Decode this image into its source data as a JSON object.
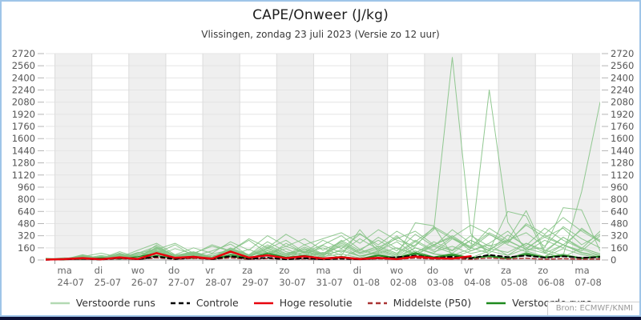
{
  "page": {
    "border_color": "#9fc5e8",
    "bottom_bar_color": "#0c1036",
    "background": "#ffffff"
  },
  "header": {
    "title": "CAPE/Onweer (J/kg)",
    "subtitle": "Vlissingen, zondag 23 juli 2023 (Versie zo 12 uur)"
  },
  "footer": {
    "source": "Bron: ECMWF/KNMI"
  },
  "chart_data": {
    "type": "line",
    "title": "CAPE/Onweer (J/kg)",
    "subtitle": "Vlissingen, zondag 23 juli 2023 (Versie zo 12 uur)",
    "ylim": [
      0,
      2720
    ],
    "yticks": [
      0,
      160,
      320,
      480,
      640,
      800,
      960,
      1120,
      1280,
      1440,
      1600,
      1760,
      1920,
      2080,
      2240,
      2400,
      2560,
      2720
    ],
    "grid": "horizontal",
    "x_hours": [
      0,
      12,
      24,
      36,
      48,
      60,
      72,
      84,
      96,
      108,
      120,
      132,
      144,
      156,
      168,
      180,
      192,
      204,
      216,
      228,
      240,
      252,
      264,
      276,
      288,
      300,
      312,
      324,
      336,
      348,
      360
    ],
    "x_axis_days": [
      {
        "dow": "ma",
        "date": "24-07"
      },
      {
        "dow": "di",
        "date": "25-07"
      },
      {
        "dow": "wo",
        "date": "26-07"
      },
      {
        "dow": "do",
        "date": "27-07"
      },
      {
        "dow": "vr",
        "date": "28-07"
      },
      {
        "dow": "za",
        "date": "29-07"
      },
      {
        "dow": "zo",
        "date": "30-07"
      },
      {
        "dow": "ma",
        "date": "31-07"
      },
      {
        "dow": "di",
        "date": "01-08"
      },
      {
        "dow": "wo",
        "date": "02-08"
      },
      {
        "dow": "do",
        "date": "03-08"
      },
      {
        "dow": "vr",
        "date": "04-08"
      },
      {
        "dow": "za",
        "date": "05-08"
      },
      {
        "dow": "zo",
        "date": "06-08"
      },
      {
        "dow": "ma",
        "date": "07-08"
      }
    ],
    "band_fill": "#efefef",
    "legend": [
      {
        "label": "Verstoorde runs",
        "color": "#b3d9b3",
        "dash": false
      },
      {
        "label": "Controle",
        "color": "#000000",
        "dash": true
      },
      {
        "label": "Hoge resolutie",
        "color": "#e8000d",
        "dash": false
      },
      {
        "label": "Middelste (P50)",
        "color": "#aa3333",
        "dash": true
      },
      {
        "label": "Verstoorde runs",
        "color": "#1e8a1e",
        "dash": false
      }
    ],
    "series": [
      {
        "name": "ensemble-01",
        "color": "#86c386",
        "width": 1,
        "dash": null,
        "opacity": 0.9,
        "values": [
          10,
          2,
          30,
          5,
          45,
          10,
          80,
          15,
          40,
          8,
          60,
          12,
          90,
          20,
          70,
          15,
          50,
          10,
          80,
          25,
          120,
          40,
          90,
          30,
          60,
          20,
          100,
          35,
          80,
          25,
          60
        ]
      },
      {
        "name": "ensemble-02",
        "color": "#86c386",
        "width": 1,
        "dash": null,
        "opacity": 0.9,
        "values": [
          5,
          15,
          20,
          40,
          10,
          60,
          150,
          30,
          20,
          60,
          90,
          15,
          120,
          40,
          60,
          100,
          30,
          140,
          60,
          20,
          160,
          80,
          30,
          120,
          200,
          60,
          150,
          90,
          40,
          160,
          80
        ]
      },
      {
        "name": "ensemble-03",
        "color": "#86c386",
        "width": 1,
        "dash": null,
        "opacity": 0.9,
        "values": [
          20,
          5,
          60,
          15,
          90,
          25,
          200,
          40,
          15,
          80,
          130,
          30,
          80,
          150,
          40,
          90,
          180,
          50,
          120,
          240,
          70,
          180,
          90,
          260,
          120,
          60,
          220,
          100,
          300,
          140,
          60
        ]
      },
      {
        "name": "ensemble-04",
        "color": "#86c386",
        "width": 1,
        "dash": null,
        "opacity": 0.9,
        "values": [
          2,
          25,
          8,
          50,
          20,
          70,
          120,
          25,
          60,
          10,
          100,
          40,
          150,
          60,
          200,
          80,
          260,
          120,
          300,
          150,
          90,
          240,
          130,
          320,
          180,
          260,
          140,
          330,
          200,
          120,
          320
        ]
      },
      {
        "name": "ensemble-05",
        "color": "#86c386",
        "width": 1,
        "dash": null,
        "opacity": 0.9,
        "values": [
          15,
          8,
          40,
          12,
          70,
          20,
          160,
          50,
          90,
          30,
          60,
          140,
          40,
          220,
          90,
          160,
          60,
          400,
          110,
          300,
          160,
          90,
          280,
          150,
          340,
          200,
          110,
          260,
          160,
          420,
          240
        ]
      },
      {
        "name": "ensemble-06",
        "color": "#86c386",
        "width": 1,
        "dash": null,
        "opacity": 0.9,
        "values": [
          8,
          20,
          50,
          10,
          30,
          90,
          180,
          60,
          110,
          40,
          160,
          70,
          240,
          110,
          60,
          190,
          100,
          280,
          140,
          320,
          100,
          200,
          300,
          120,
          220,
          380,
          160,
          300,
          420,
          200,
          340
        ]
      },
      {
        "name": "ensemble-07",
        "color": "#86c386",
        "width": 1,
        "dash": null,
        "opacity": 0.9,
        "values": [
          25,
          10,
          70,
          20,
          110,
          35,
          90,
          200,
          50,
          120,
          210,
          60,
          150,
          260,
          100,
          200,
          320,
          140,
          260,
          120,
          340,
          180,
          400,
          220,
          120,
          330,
          190,
          420,
          260,
          150,
          380
        ]
      },
      {
        "name": "ensemble-08",
        "color": "#86c386",
        "width": 1,
        "dash": null,
        "opacity": 0.9,
        "values": [
          12,
          30,
          18,
          60,
          25,
          100,
          60,
          150,
          80,
          200,
          120,
          260,
          90,
          180,
          280,
          130,
          240,
          350,
          170,
          280,
          380,
          200,
          320,
          160,
          420,
          260,
          360,
          180,
          440,
          280,
          160
        ]
      },
      {
        "name": "ensemble-09",
        "color": "#86c386",
        "width": 1,
        "dash": null,
        "opacity": 0.9,
        "values": [
          6,
          18,
          45,
          90,
          35,
          130,
          220,
          70,
          160,
          90,
          240,
          130,
          320,
          180,
          100,
          260,
          150,
          340,
          200,
          380,
          240,
          420,
          280,
          180,
          360,
          240,
          460,
          300,
          200,
          400,
          260
        ]
      },
      {
        "name": "ensemble-10",
        "color": "#86c386",
        "width": 1,
        "dash": null,
        "opacity": 0.9,
        "values": [
          18,
          6,
          55,
          25,
          85,
          40,
          140,
          220,
          90,
          180,
          120,
          280,
          160,
          340,
          200,
          280,
          360,
          220,
          400,
          260,
          180,
          440,
          300,
          460,
          340,
          220,
          480,
          340,
          560,
          380,
          240
        ]
      },
      {
        "name": "ensemble-11-spike-0308",
        "color": "#86c386",
        "width": 1,
        "dash": null,
        "opacity": 0.9,
        "values": [
          5,
          10,
          30,
          8,
          50,
          15,
          120,
          30,
          60,
          20,
          90,
          35,
          70,
          25,
          110,
          45,
          80,
          30,
          120,
          60,
          200,
          400,
          2670,
          350,
          60,
          25,
          90,
          40,
          150,
          70,
          30
        ]
      },
      {
        "name": "ensemble-12-spike-0408",
        "color": "#86c386",
        "width": 1,
        "dash": null,
        "opacity": 0.9,
        "values": [
          8,
          3,
          25,
          10,
          60,
          20,
          90,
          40,
          70,
          25,
          120,
          50,
          160,
          60,
          90,
          35,
          140,
          55,
          100,
          45,
          160,
          80,
          60,
          150,
          2240,
          500,
          120,
          45,
          200,
          90,
          40
        ]
      },
      {
        "name": "ensemble-13-rise-end",
        "color": "#86c386",
        "width": 1,
        "dash": null,
        "opacity": 0.9,
        "values": [
          3,
          12,
          40,
          15,
          70,
          25,
          110,
          50,
          80,
          30,
          130,
          60,
          100,
          40,
          150,
          70,
          120,
          50,
          90,
          160,
          70,
          200,
          120,
          260,
          150,
          100,
          220,
          130,
          60,
          900,
          2080
        ]
      },
      {
        "name": "ensemble-14-flat-0608",
        "color": "#86c386",
        "width": 1,
        "dash": null,
        "opacity": 0.9,
        "values": [
          10,
          4,
          35,
          12,
          55,
          18,
          130,
          45,
          75,
          28,
          95,
          42,
          130,
          55,
          170,
          75,
          240,
          100,
          180,
          90,
          260,
          130,
          300,
          160,
          90,
          250,
          140,
          160,
          690,
          660,
          120
        ]
      },
      {
        "name": "ensemble-15-spike-0508",
        "color": "#86c386",
        "width": 1,
        "dash": null,
        "opacity": 0.9,
        "values": [
          6,
          22,
          12,
          45,
          18,
          85,
          150,
          55,
          95,
          35,
          150,
          65,
          200,
          85,
          140,
          60,
          220,
          95,
          160,
          75,
          240,
          110,
          180,
          85,
          140,
          260,
          650,
          120,
          300,
          160,
          80
        ]
      },
      {
        "name": "ensemble-16-flat-0208",
        "color": "#86c386",
        "width": 1,
        "dash": null,
        "opacity": 0.9,
        "values": [
          4,
          16,
          50,
          20,
          80,
          30,
          170,
          60,
          100,
          40,
          140,
          55,
          180,
          75,
          120,
          50,
          200,
          80,
          140,
          60,
          490,
          450,
          60,
          30,
          120,
          640,
          580,
          90,
          200,
          100,
          60
        ]
      },
      {
        "name": "verstoorde-dark-1",
        "color": "#1e8a1e",
        "width": 1.2,
        "dash": null,
        "opacity": 1,
        "values": [
          8,
          3,
          20,
          6,
          35,
          10,
          60,
          18,
          30,
          8,
          45,
          15,
          70,
          22,
          50,
          14,
          40,
          10,
          55,
          20,
          80,
          30,
          60,
          22,
          45,
          15,
          70,
          28,
          55,
          20,
          40
        ]
      },
      {
        "name": "verstoorde-dark-2",
        "color": "#1e8a1e",
        "width": 1.2,
        "dash": null,
        "opacity": 1,
        "values": [
          4,
          14,
          8,
          28,
          12,
          45,
          90,
          25,
          50,
          15,
          70,
          25,
          90,
          35,
          60,
          25,
          45,
          18,
          65,
          28,
          95,
          40,
          75,
          30,
          55,
          22,
          85,
          38,
          65,
          28,
          50
        ]
      },
      {
        "name": "middelste-p50",
        "color": "#aa3333",
        "width": 1.5,
        "dash": "5,3",
        "opacity": 1,
        "values": [
          2,
          5,
          12,
          4,
          18,
          7,
          30,
          10,
          22,
          8,
          28,
          10,
          20,
          8,
          16,
          6,
          14,
          5,
          16,
          10,
          24,
          12,
          18,
          9,
          26,
          14,
          22,
          11,
          18,
          9,
          14
        ]
      },
      {
        "name": "controle",
        "color": "#000000",
        "width": 2,
        "dash": "5,4",
        "opacity": 1,
        "values": [
          3,
          8,
          18,
          6,
          28,
          10,
          45,
          14,
          38,
          12,
          50,
          16,
          30,
          10,
          24,
          9,
          20,
          8,
          24,
          38,
          58,
          28,
          42,
          22,
          68,
          38,
          58,
          32,
          48,
          28,
          38
        ]
      },
      {
        "name": "hoge-resolutie",
        "color": "#e8000d",
        "width": 2.5,
        "dash": null,
        "opacity": 1,
        "values": [
          5,
          12,
          25,
          10,
          35,
          14,
          92,
          28,
          42,
          18,
          112,
          32,
          62,
          24,
          48,
          20,
          36,
          14,
          30,
          12,
          46,
          25,
          18,
          50
        ]
      }
    ]
  }
}
